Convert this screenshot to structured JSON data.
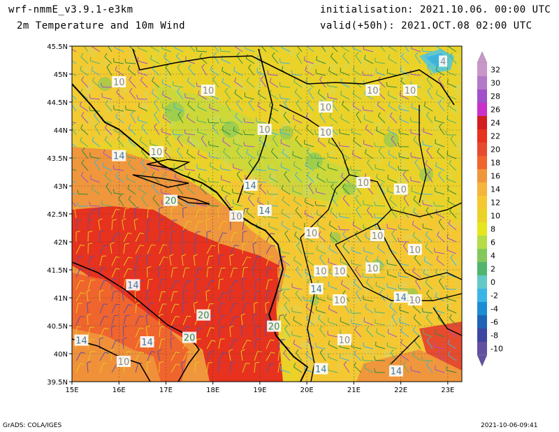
{
  "header": {
    "model": "wrf-nmmE_v3.9.1-e3km",
    "field": "2m Temperature and 10m Wind",
    "init": "initialisation: 2021.10.06. 00:00 UTC",
    "valid": "valid(+50h): 2021.OCT.08 02:00 UTC"
  },
  "footer": {
    "left": "GrADS: COLA/IGES",
    "right": "2021-10-06-09:41"
  },
  "axes": {
    "lon_labels": [
      "15E",
      "16E",
      "17E",
      "18E",
      "19E",
      "20E",
      "21E",
      "22E",
      "23E"
    ],
    "lat_labels": [
      "45.5N",
      "45N",
      "44.5N",
      "44N",
      "43.5N",
      "43N",
      "42.5N",
      "42N",
      "41.5N",
      "41N",
      "40.5N",
      "40N",
      "39.5N"
    ],
    "lon_range": [
      15,
      23.3
    ],
    "lat_range": [
      39.5,
      45.5
    ]
  },
  "colorbar": {
    "labels": [
      "32",
      "30",
      "28",
      "26",
      "24",
      "22",
      "20",
      "18",
      "16",
      "14",
      "12",
      "10",
      "8",
      "6",
      "4",
      "2",
      "0",
      "-2",
      "-4",
      "-6",
      "-8",
      "-10"
    ],
    "colors": [
      "#c896c8",
      "#b478c8",
      "#a050c8",
      "#c832c8",
      "#d21e1e",
      "#e6321e",
      "#e64b2d",
      "#f0642d",
      "#f0963c",
      "#f5b43c",
      "#f5c832",
      "#ebd228",
      "#e6e61e",
      "#b4dc46",
      "#82c85a",
      "#50b46e",
      "#64c8c8",
      "#3cb4e6",
      "#1e8cd2",
      "#1e64b4",
      "#3c46a0",
      "#6450a0"
    ]
  },
  "contour_labels": [
    {
      "text": "10",
      "lon": 16.0,
      "lat": 44.85
    },
    {
      "text": "10",
      "lon": 17.9,
      "lat": 44.7
    },
    {
      "text": "10",
      "lon": 19.1,
      "lat": 44.0
    },
    {
      "text": "10",
      "lon": 20.4,
      "lat": 44.4
    },
    {
      "text": "10",
      "lon": 20.4,
      "lat": 43.95
    },
    {
      "text": "10",
      "lon": 21.4,
      "lat": 44.7
    },
    {
      "text": "10",
      "lon": 22.2,
      "lat": 44.7
    },
    {
      "text": "10",
      "lon": 16.8,
      "lat": 43.6
    },
    {
      "text": "14",
      "lon": 16.0,
      "lat": 43.53
    },
    {
      "text": "14",
      "lon": 18.8,
      "lat": 43.0
    },
    {
      "text": "20",
      "lon": 17.1,
      "lat": 42.73
    },
    {
      "text": "10",
      "lon": 18.5,
      "lat": 42.45
    },
    {
      "text": "14",
      "lon": 19.1,
      "lat": 42.55
    },
    {
      "text": "10",
      "lon": 20.1,
      "lat": 42.15
    },
    {
      "text": "10",
      "lon": 21.2,
      "lat": 43.05
    },
    {
      "text": "10",
      "lon": 22.0,
      "lat": 42.93
    },
    {
      "text": "10",
      "lon": 21.5,
      "lat": 42.1
    },
    {
      "text": "10",
      "lon": 22.3,
      "lat": 41.85
    },
    {
      "text": "10",
      "lon": 20.3,
      "lat": 41.47
    },
    {
      "text": "10",
      "lon": 20.7,
      "lat": 41.47
    },
    {
      "text": "10",
      "lon": 21.4,
      "lat": 41.52
    },
    {
      "text": "14",
      "lon": 16.3,
      "lat": 41.22
    },
    {
      "text": "14",
      "lon": 20.2,
      "lat": 41.15
    },
    {
      "text": "10",
      "lon": 20.7,
      "lat": 40.95
    },
    {
      "text": "14",
      "lon": 22.0,
      "lat": 41.0
    },
    {
      "text": "10",
      "lon": 22.3,
      "lat": 40.95
    },
    {
      "text": "20",
      "lon": 17.8,
      "lat": 40.68
    },
    {
      "text": "20",
      "lon": 19.3,
      "lat": 40.48
    },
    {
      "text": "20",
      "lon": 17.5,
      "lat": 40.28
    },
    {
      "text": "14",
      "lon": 15.2,
      "lat": 40.23
    },
    {
      "text": "14",
      "lon": 16.6,
      "lat": 40.2
    },
    {
      "text": "10",
      "lon": 20.8,
      "lat": 40.24
    },
    {
      "text": "10",
      "lon": 16.1,
      "lat": 39.85
    },
    {
      "text": "14",
      "lon": 20.3,
      "lat": 39.72
    },
    {
      "text": "14",
      "lon": 21.9,
      "lat": 39.68
    },
    {
      "text": "4",
      "lon": 22.9,
      "lat": 45.22
    }
  ]
}
